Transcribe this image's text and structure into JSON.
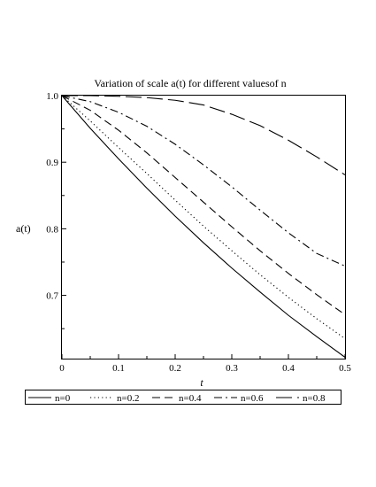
{
  "chart_data": {
    "type": "line",
    "title": "Variation of scale a(t) for different valuesof n",
    "xlabel": "t",
    "ylabel": "a(t)",
    "xlim": [
      0,
      0.5
    ],
    "ylim": [
      0.605,
      1.0
    ],
    "xticks": [
      {
        "value": 0,
        "label": "0"
      },
      {
        "value": 0.1,
        "label": "0.1"
      },
      {
        "value": 0.2,
        "label": "0.2"
      },
      {
        "value": 0.3,
        "label": "0.3"
      },
      {
        "value": 0.4,
        "label": "0.4"
      },
      {
        "value": 0.5,
        "label": "0.5"
      }
    ],
    "yticks": [
      {
        "value": 0.7,
        "label": "0.7"
      },
      {
        "value": 0.8,
        "label": "0.8"
      },
      {
        "value": 0.9,
        "label": "0.9"
      },
      {
        "value": 1.0,
        "label": "1.0"
      }
    ],
    "grid": false,
    "legend_position": "bottom",
    "x": [
      0,
      0.05,
      0.1,
      0.15,
      0.2,
      0.25,
      0.3,
      0.35,
      0.4,
      0.45,
      0.5
    ],
    "series": [
      {
        "name": "n=0",
        "style": "solid",
        "values": [
          1.0,
          0.951,
          0.905,
          0.861,
          0.819,
          0.779,
          0.741,
          0.705,
          0.67,
          0.638,
          0.607
        ]
      },
      {
        "name": "n=0.2",
        "style": "dotted",
        "values": [
          1.0,
          0.962,
          0.922,
          0.883,
          0.843,
          0.804,
          0.767,
          0.731,
          0.697,
          0.665,
          0.635
        ]
      },
      {
        "name": "n=0.4",
        "style": "dashed",
        "values": [
          1.0,
          0.978,
          0.948,
          0.914,
          0.877,
          0.84,
          0.803,
          0.767,
          0.733,
          0.701,
          0.671
        ]
      },
      {
        "name": "n=0.6",
        "style": "dashdot",
        "values": [
          1.0,
          0.991,
          0.975,
          0.954,
          0.927,
          0.896,
          0.863,
          0.828,
          0.794,
          0.763,
          0.744
        ]
      },
      {
        "name": "n=0.8",
        "style": "longdash",
        "values": [
          1.0,
          1.0,
          0.999,
          0.997,
          0.993,
          0.986,
          0.972,
          0.955,
          0.933,
          0.908,
          0.881
        ]
      }
    ]
  }
}
